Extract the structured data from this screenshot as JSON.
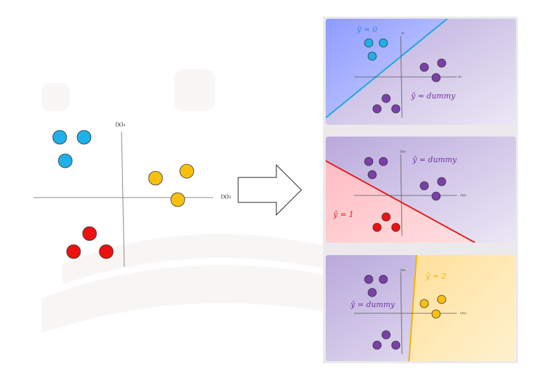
{
  "main_plot": {
    "axis_label_vertical": "(x)₁",
    "axis_label_horizontal": "(x)₂"
  },
  "panels": [
    {
      "class_label": "ŷ = 0",
      "other_label": "ŷ = dummy",
      "axis_label_vertical": "x₁",
      "axis_label_horizontal": "x₂",
      "highlight_color": "#8ea6ff",
      "line_color": "#1aa7e0"
    },
    {
      "class_label": "ŷ = 1",
      "other_label": "ŷ = dummy",
      "axis_label_vertical": "(x)₁",
      "axis_label_horizontal": "(x)₂",
      "highlight_color": "#ffc2c6",
      "line_color": "#e21b1b"
    },
    {
      "class_label": "ŷ = 2",
      "other_label": "ŷ = dummy",
      "axis_label_vertical": "(x)₁",
      "axis_label_horizontal": "(x)₂",
      "highlight_color": "#ffe7a8",
      "line_color": "#f0b400"
    }
  ],
  "colors": {
    "class0": "#1eb0e6",
    "class1": "#ee1111",
    "class2": "#f7c010",
    "dummy": "#7a3fa8",
    "dummy_region": "#c7badf",
    "class0_label": "#2a8bd0",
    "class1_label": "#e01818",
    "class2_label": "#f0b400",
    "dummy_label": "#7030a0"
  }
}
